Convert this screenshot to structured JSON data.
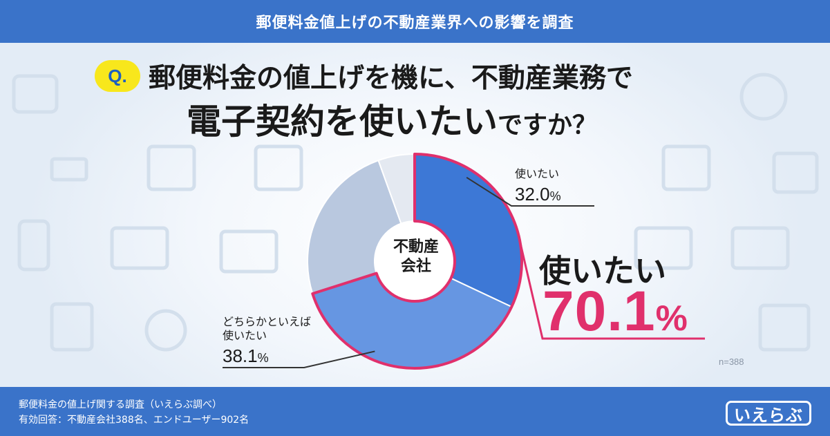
{
  "header": {
    "title": "郵便料金値上げの不動産業界への影響を調査"
  },
  "question": {
    "badge": "Q.",
    "line1": "郵便料金の値上げを機に、不動産業務で",
    "line2_main": "電子契約を使いたい",
    "line2_tail": "ですか？"
  },
  "chart_data": {
    "type": "pie",
    "style": "donut",
    "center_label": [
      "不動産",
      "会社"
    ],
    "slices": [
      {
        "label": "使いたい",
        "value": 32.0,
        "color": "#3d78d6"
      },
      {
        "label": "どちらかといえば 使いたい",
        "value": 38.1,
        "color": "#6696e2"
      },
      {
        "label": "",
        "value": 24.4,
        "color": "#b9c8df"
      },
      {
        "label": "",
        "value": 5.5,
        "color": "#e4e9f1"
      }
    ],
    "highlight": {
      "label": "使いたい",
      "value": "70.1",
      "unit": "%",
      "color": "#e0306c"
    },
    "n": "n=388"
  },
  "labels": {
    "slice1_name": "使いたい",
    "slice1_value": "32.0",
    "slice2_name_line1": "どちらかといえば",
    "slice2_name_line2": "使いたい",
    "slice2_value": "38.1",
    "unit": "%"
  },
  "footer": {
    "line1": "郵便料金の値上げ関する調査（いえらぶ調べ）",
    "line2": "有効回答：不動産会社388名、エンドユーザー902名",
    "logo": "いえらぶ"
  }
}
